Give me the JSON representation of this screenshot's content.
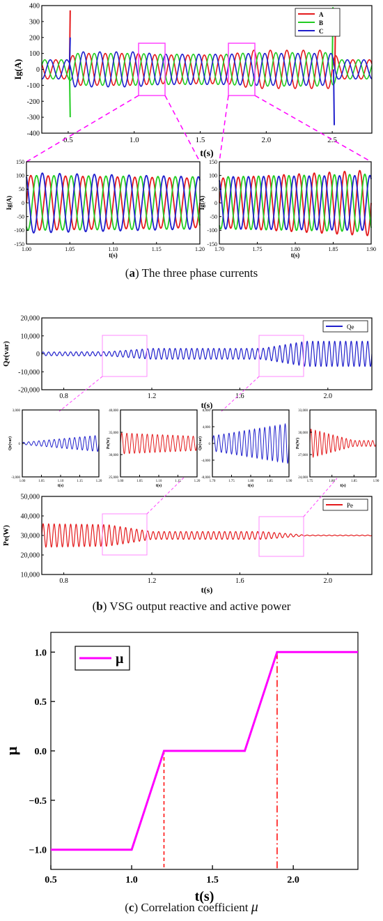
{
  "panels": {
    "a": {
      "caption_letter": "a",
      "caption_text": " The three phase currents",
      "main": {
        "type": "line",
        "xlabel": "t(s)",
        "ylabel": "Ig(A)",
        "xlim": [
          0.3,
          2.8
        ],
        "ylim": [
          -400,
          400
        ],
        "xticks": [
          "0.5",
          "1.0",
          "1.5",
          "2.0",
          "2.5"
        ],
        "yticks": [
          "-400",
          "-300",
          "-200",
          "-100",
          "0",
          "100",
          "200",
          "300",
          "400"
        ],
        "legend": [
          "A",
          "B",
          "C"
        ],
        "legend_position": "top-right"
      },
      "zoom_left": {
        "xlabel": "t(s)",
        "ylabel": "Ig(A)",
        "xlim": [
          1.0,
          1.2
        ],
        "ylim": [
          -150,
          150
        ],
        "xticks": [
          "1.00",
          "1.05",
          "1.10",
          "1.15",
          "1.20"
        ],
        "yticks": [
          "-150",
          "-100",
          "-50",
          "0",
          "50",
          "100",
          "150"
        ]
      },
      "zoom_right": {
        "xlabel": "t(s)",
        "ylabel": "Ig(A)",
        "xlim": [
          1.7,
          1.9
        ],
        "ylim": [
          -150,
          150
        ],
        "xticks": [
          "1.70",
          "1.75",
          "1.80",
          "1.85",
          "1.90"
        ],
        "yticks": [
          "-150",
          "-100",
          "-50",
          "0",
          "50",
          "100",
          "150"
        ]
      }
    },
    "b": {
      "caption_letter": "b",
      "caption_text": " VSG output reactive and active power",
      "qe": {
        "xlabel": "t(s)",
        "ylabel": "Qe(var)",
        "xlim": [
          0.7,
          2.2
        ],
        "ylim": [
          -20000,
          20000
        ],
        "xticks": [
          "0.8",
          "1.2",
          "1.6",
          "2.0"
        ],
        "yticks": [
          "-20,000",
          "-10,000",
          "0",
          "10,000",
          "20,000"
        ],
        "legend": [
          "Qe"
        ]
      },
      "pe": {
        "xlabel": "t(s)",
        "ylabel": "Pe(W)",
        "xlim": [
          0.7,
          2.2
        ],
        "ylim": [
          10000,
          50000
        ],
        "xticks": [
          "0.8",
          "1.2",
          "1.6",
          "2.0"
        ],
        "yticks": [
          "10,000",
          "20,000",
          "30,000",
          "40,000",
          "50,000"
        ],
        "legend": [
          "Pe"
        ]
      },
      "insets": [
        {
          "ylabel": "Qe(var)",
          "xlabel": "t(s)",
          "xticks": [
            "1.00",
            "1.05",
            "1.10",
            "1.15",
            "1.20"
          ],
          "yticks": [
            "-3,000",
            "0",
            "3,000"
          ]
        },
        {
          "ylabel": "Pe(W)",
          "xlabel": "t(s)",
          "xticks": [
            "1.00",
            "1.05",
            "1.10",
            "1.15",
            "1.20"
          ],
          "yticks": [
            "25,000",
            "30,000",
            "35,000",
            "40,000"
          ]
        },
        {
          "ylabel": "Qe(var)",
          "xlabel": "t(s)",
          "xticks": [
            "1.70",
            "1.75",
            "1.80",
            "1.85",
            "1.90"
          ],
          "yticks": [
            "-8,000",
            "-4,000",
            "0",
            "4,000",
            "8,000"
          ]
        },
        {
          "ylabel": "Pe(W)",
          "xlabel": "t(s)",
          "xticks": [
            "1.75",
            "1.80",
            "1.85",
            "1.90"
          ],
          "yticks": [
            "24,000",
            "27,000",
            "30,000",
            "33,000"
          ]
        }
      ]
    },
    "c": {
      "caption_letter": "c",
      "caption_text": " Correlation coefficient ",
      "caption_symbol": "μ",
      "xlabel": "t(s)",
      "ylabel": "μ",
      "legend": [
        "μ"
      ]
    }
  },
  "chart_data": [
    {
      "type": "line",
      "title": "",
      "xlabel": "t(s)",
      "ylabel": "Ig(A)",
      "xlim": [
        0.3,
        2.8
      ],
      "ylim": [
        -400,
        400
      ],
      "series": [
        {
          "name": "A",
          "color": "#e41a1c",
          "envelope_amplitude_vs_t": {
            "t": [
              0.3,
              0.5,
              0.55,
              1.0,
              1.2,
              1.7,
              1.9,
              2.5,
              2.55,
              2.8
            ],
            "amp": [
              60,
              60,
              100,
              100,
              90,
              90,
              120,
              120,
              60,
              60
            ]
          },
          "transient_peaks": [
            {
              "t": 0.51,
              "value": 370
            },
            {
              "t": 2.52,
              "value": 380
            }
          ]
        },
        {
          "name": "B",
          "color": "#22cc22",
          "envelope_amplitude_vs_t": {
            "t": [
              0.3,
              0.5,
              0.55,
              1.0,
              1.2,
              1.7,
              1.9,
              2.5,
              2.55,
              2.8
            ],
            "amp": [
              60,
              60,
              100,
              100,
              95,
              95,
              105,
              105,
              60,
              60
            ]
          },
          "transient_peaks": [
            {
              "t": 0.51,
              "value": -300
            },
            {
              "t": 2.5,
              "value": 390
            }
          ]
        },
        {
          "name": "C",
          "color": "#1f1fcc",
          "envelope_amplitude_vs_t": {
            "t": [
              0.3,
              0.5,
              0.55,
              1.0,
              1.2,
              1.7,
              1.9,
              2.5,
              2.55,
              2.8
            ],
            "amp": [
              60,
              60,
              110,
              110,
              95,
              95,
              100,
              100,
              60,
              60
            ]
          },
          "transient_peaks": [
            {
              "t": 0.51,
              "value": 200
            },
            {
              "t": 2.51,
              "value": -350
            }
          ]
        }
      ],
      "grid": false,
      "legend_position": "top-right"
    },
    {
      "type": "line",
      "xlabel": "t(s)",
      "ylabel": "Qe(var)",
      "xlim": [
        0.7,
        2.2
      ],
      "ylim": [
        -20000,
        20000
      ],
      "series": [
        {
          "name": "Qe",
          "color": "#1f1fcc",
          "envelope_amplitude_vs_t": {
            "t": [
              0.7,
              1.0,
              1.2,
              1.7,
              1.9,
              2.2
            ],
            "amp": [
              1000,
              1200,
              3000,
              3000,
              7000,
              7000
            ]
          }
        }
      ],
      "grid": false,
      "legend_position": "top-right"
    },
    {
      "type": "line",
      "xlabel": "t(s)",
      "ylabel": "Pe(W)",
      "xlim": [
        0.7,
        2.2
      ],
      "ylim": [
        10000,
        50000
      ],
      "series": [
        {
          "name": "Pe",
          "color": "#e41a1c",
          "mean": 30000,
          "envelope_amplitude_vs_t": {
            "t": [
              0.7,
              1.0,
              1.2,
              1.7,
              1.9,
              2.2
            ],
            "amp": [
              6000,
              5500,
              2000,
              2000,
              200,
              200
            ]
          }
        }
      ],
      "grid": false,
      "legend_position": "top-right"
    },
    {
      "type": "line",
      "xlabel": "t(s)",
      "ylabel": "μ",
      "xlim": [
        0.5,
        2.4
      ],
      "ylim": [
        -1.2,
        1.2
      ],
      "xticks": [
        0.5,
        1.0,
        1.5,
        2.0
      ],
      "yticks": [
        -1.0,
        -0.5,
        0.0,
        0.5,
        1.0
      ],
      "series": [
        {
          "name": "μ",
          "color": "#ff00ff",
          "x": [
            0.5,
            1.0,
            1.2,
            1.7,
            1.9,
            2.4
          ],
          "y": [
            -1.0,
            -1.0,
            0.0,
            0.0,
            1.0,
            1.0
          ]
        }
      ],
      "annotations": [
        {
          "type": "vline",
          "x": 1.2,
          "from": -1.2,
          "to": 0.0,
          "style": "dashed",
          "color": "#ff0000"
        },
        {
          "type": "vline",
          "x": 1.9,
          "from": -1.2,
          "to": 1.0,
          "style": "dashdot",
          "color": "#ff0000"
        }
      ],
      "grid": false,
      "legend_position": "top-left"
    }
  ]
}
